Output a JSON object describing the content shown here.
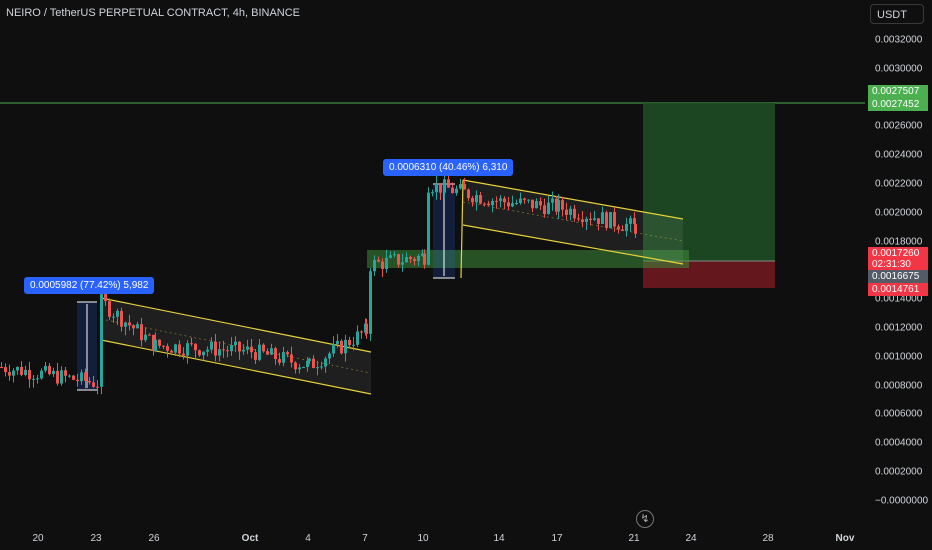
{
  "header": {
    "title": "NEIRO / TetherUS PERPETUAL CONTRACT, 4h, BINANCE",
    "currency_button": "USDT"
  },
  "y_axis": {
    "ticks": [
      "0.0032000",
      "0.0030000",
      "0.0026000",
      "0.0024000",
      "0.0022000",
      "0.0020000",
      "0.0018000",
      "0.0014000",
      "0.0012000",
      "0.0010000",
      "0.0008000",
      "0.0006000",
      "0.0004000",
      "0.0002000",
      "−0.0000000"
    ]
  },
  "x_axis": {
    "ticks": [
      "20",
      "23",
      "26",
      "Oct",
      "4",
      "7",
      "10",
      "14",
      "17",
      "21",
      "24",
      "28",
      "Nov"
    ]
  },
  "price_tags": {
    "target_1": {
      "label": "0.0027507",
      "color": "#4caf50"
    },
    "target_2": {
      "label": "0.0027452",
      "color": "#4caf50"
    },
    "current": {
      "label": "0.0017260",
      "color": "#f23645"
    },
    "countdown": {
      "label": "02:31:30",
      "color": "#f23645"
    },
    "entry": {
      "label": "0.0016675",
      "color": "#555b66"
    },
    "stop": {
      "label": "0.0014761",
      "color": "#f23645"
    }
  },
  "measurements": [
    {
      "label": "0.0005982 (77.42%) 5,982"
    },
    {
      "label": "0.0006310 (40.46%) 6,310"
    }
  ],
  "icons": {
    "replay": "lightning-icon"
  },
  "colors": {
    "background": "#0f0f0f",
    "up": "#26a69a",
    "down": "#ef5350",
    "channel": "#e6d23a",
    "target_zone": "#1e4d23",
    "stop_zone": "#6e1a1f"
  },
  "chart_data": {
    "type": "candlestick",
    "symbol": "NEIRO/USDT",
    "interval": "4h",
    "y_range": [
      0.0,
      0.0033
    ],
    "x_labels": [
      "20",
      "23",
      "26",
      "Oct",
      "4",
      "7",
      "10",
      "14",
      "17",
      "21",
      "24",
      "28",
      "Nov"
    ],
    "price_path_approx": [
      {
        "x": "20",
        "price": 0.00093
      },
      {
        "x": "23",
        "price": 0.00082
      },
      {
        "x": "23",
        "price": 0.00138
      },
      {
        "x": "26",
        "price": 0.00108
      },
      {
        "x": "Oct",
        "price": 0.00104
      },
      {
        "x": "4",
        "price": 0.00094
      },
      {
        "x": "7",
        "price": 0.00118
      },
      {
        "x": "7",
        "price": 0.00164
      },
      {
        "x": "10",
        "price": 0.0017
      },
      {
        "x": "10",
        "price": 0.0022
      },
      {
        "x": "14",
        "price": 0.00208
      },
      {
        "x": "17",
        "price": 0.00204
      },
      {
        "x": "21",
        "price": 0.0019
      },
      {
        "x": "21",
        "price": 0.00172
      }
    ],
    "position": {
      "entry": 0.0016675,
      "target": 0.0027452,
      "stop": 0.0014761
    },
    "horizontal_line": 0.0027507,
    "support_zone": [
      0.0016,
      0.00172
    ]
  }
}
